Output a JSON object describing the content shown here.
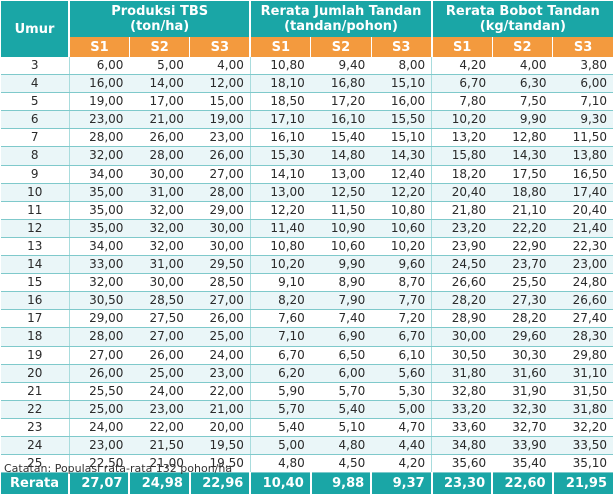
{
  "headers": {
    "umur": "Umur",
    "groups": [
      "Produksi TBS\n(ton/ha)",
      "Rerata Jumlah Tandan\n(tandan/pohon)",
      "Rerata Bobot Tandan\n(kg/tandan)"
    ],
    "sub": [
      "S1",
      "S2",
      "S3"
    ]
  },
  "rows": [
    [
      "3",
      "6,00",
      "5,00",
      "4,00",
      "10,80",
      "9,40",
      "8,00",
      "4,20",
      "4,00",
      "3,80"
    ],
    [
      "4",
      "16,00",
      "14,00",
      "12,00",
      "18,10",
      "16,80",
      "15,10",
      "6,70",
      "6,30",
      "6,00"
    ],
    [
      "5",
      "19,00",
      "17,00",
      "15,00",
      "18,50",
      "17,20",
      "16,00",
      "7,80",
      "7,50",
      "7,10"
    ],
    [
      "6",
      "23,00",
      "21,00",
      "19,00",
      "17,10",
      "16,10",
      "15,50",
      "10,20",
      "9,90",
      "9,30"
    ],
    [
      "7",
      "28,00",
      "26,00",
      "23,00",
      "16,10",
      "15,40",
      "15,10",
      "13,20",
      "12,80",
      "11,50"
    ],
    [
      "8",
      "32,00",
      "28,00",
      "26,00",
      "15,30",
      "14,80",
      "14,30",
      "15,80",
      "14,30",
      "13,80"
    ],
    [
      "9",
      "34,00",
      "30,00",
      "27,00",
      "14,10",
      "13,00",
      "12,40",
      "18,20",
      "17,50",
      "16,50"
    ],
    [
      "10",
      "35,00",
      "31,00",
      "28,00",
      "13,00",
      "12,50",
      "12,20",
      "20,40",
      "18,80",
      "17,40"
    ],
    [
      "11",
      "35,00",
      "32,00",
      "29,00",
      "12,20",
      "11,50",
      "10,80",
      "21,80",
      "21,10",
      "20,40"
    ],
    [
      "12",
      "35,00",
      "32,00",
      "30,00",
      "11,40",
      "10,90",
      "10,60",
      "23,20",
      "22,20",
      "21,40"
    ],
    [
      "13",
      "34,00",
      "32,00",
      "30,00",
      "10,80",
      "10,60",
      "10,20",
      "23,90",
      "22,90",
      "22,30"
    ],
    [
      "14",
      "33,00",
      "31,00",
      "29,50",
      "10,20",
      "9,90",
      "9,60",
      "24,50",
      "23,70",
      "23,00"
    ],
    [
      "15",
      "32,00",
      "30,00",
      "28,50",
      "9,10",
      "8,90",
      "8,70",
      "26,60",
      "25,50",
      "24,80"
    ],
    [
      "16",
      "30,50",
      "28,50",
      "27,00",
      "8,20",
      "7,90",
      "7,70",
      "28,20",
      "27,30",
      "26,60"
    ],
    [
      "17",
      "29,00",
      "27,50",
      "26,00",
      "7,60",
      "7,40",
      "7,20",
      "28,90",
      "28,20",
      "27,40"
    ],
    [
      "18",
      "28,00",
      "27,00",
      "25,00",
      "7,10",
      "6,90",
      "6,70",
      "30,00",
      "29,60",
      "28,30"
    ],
    [
      "19",
      "27,00",
      "26,00",
      "24,00",
      "6,70",
      "6,50",
      "6,10",
      "30,50",
      "30,30",
      "29,80"
    ],
    [
      "20",
      "26,00",
      "25,00",
      "23,00",
      "6,20",
      "6,00",
      "5,60",
      "31,80",
      "31,60",
      "31,10"
    ],
    [
      "21",
      "25,50",
      "24,00",
      "22,00",
      "5,90",
      "5,70",
      "5,30",
      "32,80",
      "31,90",
      "31,50"
    ],
    [
      "22",
      "25,00",
      "23,00",
      "21,00",
      "5,70",
      "5,40",
      "5,00",
      "33,20",
      "32,30",
      "31,80"
    ],
    [
      "23",
      "24,00",
      "22,00",
      "20,00",
      "5,40",
      "5,10",
      "4,70",
      "33,60",
      "32,70",
      "32,20"
    ],
    [
      "24",
      "23,00",
      "21,50",
      "19,50",
      "5,00",
      "4,80",
      "4,40",
      "34,80",
      "33,90",
      "33,50"
    ],
    [
      "25",
      "22,50",
      "21,00",
      "19,50",
      "4,80",
      "4,50",
      "4,20",
      "35,60",
      "35,40",
      "35,10"
    ]
  ],
  "footer": {
    "label": "Rerata",
    "values": [
      "27,07",
      "24,98",
      "22,96",
      "10,40",
      "9,88",
      "9,37",
      "23,30",
      "22,60",
      "21,95"
    ]
  },
  "note": "Catatan: Populasi rata-rata 132 pohon/ha",
  "colors": {
    "header": "#1aa6a6",
    "subheader": "#f39a3e",
    "row_alt": "#eaf6f8",
    "row_line": "#7fc9cb"
  }
}
